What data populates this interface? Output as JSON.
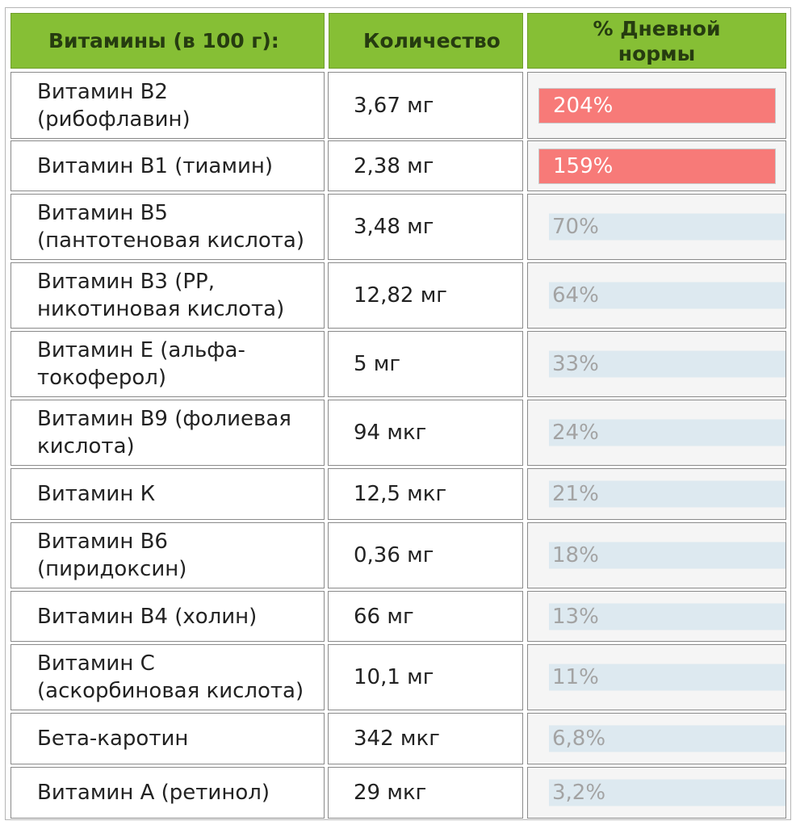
{
  "table": {
    "headers": {
      "vitamin": "Витамины (в 100 г):",
      "amount": "Количество",
      "percent_line1": "% Дневной",
      "percent_line2": "нормы"
    },
    "colors": {
      "header_bg": "#86bf35",
      "high_bar": "#f77a78",
      "low_bar": "#dde9f0"
    },
    "rows": [
      {
        "name_line1": "Витамин В2",
        "name_line2": "(рибофлавин)",
        "amount": "3,67 мг",
        "percent": "204%",
        "percent_value": 204,
        "level": "high"
      },
      {
        "name_line1": "Витамин В1 (тиамин)",
        "name_line2": "",
        "amount": "2,38 мг",
        "percent": "159%",
        "percent_value": 159,
        "level": "high"
      },
      {
        "name_line1": "Витамин В5",
        "name_line2": "(пантотеновая кислота)",
        "amount": "3,48 мг",
        "percent": "70%",
        "percent_value": 70,
        "level": "low"
      },
      {
        "name_line1": "Витамин В3 (PP,",
        "name_line2": "никотиновая кислота)",
        "amount": "12,82 мг",
        "percent": "64%",
        "percent_value": 64,
        "level": "low"
      },
      {
        "name_line1": "Витамин Е (альфа-",
        "name_line2": "токоферол)",
        "amount": "5 мг",
        "percent": "33%",
        "percent_value": 33,
        "level": "low"
      },
      {
        "name_line1": "Витамин В9 (фолиевая",
        "name_line2": "кислота)",
        "amount": "94 мкг",
        "percent": "24%",
        "percent_value": 24,
        "level": "low"
      },
      {
        "name_line1": "Витамин К",
        "name_line2": "",
        "amount": "12,5 мкг",
        "percent": "21%",
        "percent_value": 21,
        "level": "low"
      },
      {
        "name_line1": "Витамин В6",
        "name_line2": "(пиридоксин)",
        "amount": "0,36 мг",
        "percent": "18%",
        "percent_value": 18,
        "level": "low"
      },
      {
        "name_line1": "Витамин В4 (холин)",
        "name_line2": "",
        "amount": "66 мг",
        "percent": "13%",
        "percent_value": 13,
        "level": "low"
      },
      {
        "name_line1": "Витамин С",
        "name_line2": "(аскорбиновая кислота)",
        "amount": "10,1 мг",
        "percent": "11%",
        "percent_value": 11,
        "level": "low"
      },
      {
        "name_line1": "Бета-каротин",
        "name_line2": "",
        "amount": "342 мкг",
        "percent": "6,8%",
        "percent_value": 6.8,
        "level": "low"
      },
      {
        "name_line1": "Витамин А (ретинол)",
        "name_line2": "",
        "amount": "29 мкг",
        "percent": "3,2%",
        "percent_value": 3.2,
        "level": "low"
      }
    ]
  }
}
